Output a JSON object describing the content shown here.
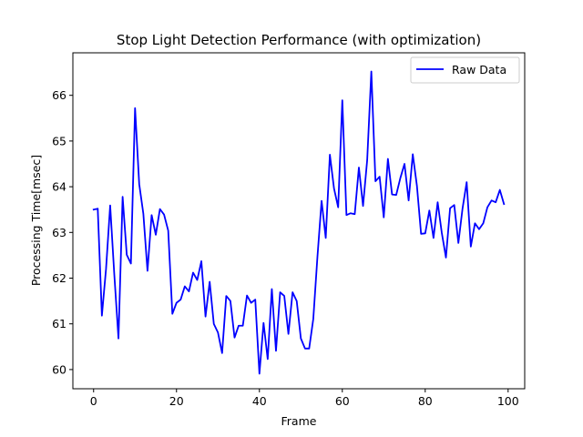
{
  "chart_data": {
    "type": "line",
    "title": "Stop Light Detection Performance (with optimization)",
    "xlabel": "Frame",
    "ylabel": "Processing Time[msec]",
    "xlim": [
      -5,
      104
    ],
    "ylim": [
      59.58,
      66.93
    ],
    "xticks": [
      0,
      20,
      40,
      60,
      80,
      100
    ],
    "yticks": [
      60,
      61,
      62,
      63,
      64,
      65,
      66
    ],
    "grid": false,
    "legend": "top-right",
    "series": [
      {
        "name": "Raw Data",
        "color": "#0000ff",
        "x": [
          0,
          1,
          2,
          3,
          4,
          5,
          6,
          7,
          8,
          9,
          10,
          11,
          12,
          13,
          14,
          15,
          16,
          17,
          18,
          19,
          20,
          21,
          22,
          23,
          24,
          25,
          26,
          27,
          28,
          29,
          30,
          31,
          32,
          33,
          34,
          35,
          36,
          37,
          38,
          39,
          40,
          41,
          42,
          43,
          44,
          45,
          46,
          47,
          48,
          49,
          50,
          51,
          52,
          53,
          54,
          55,
          56,
          57,
          58,
          59,
          60,
          61,
          62,
          63,
          64,
          65,
          66,
          67,
          68,
          69,
          70,
          71,
          72,
          73,
          74,
          75,
          76,
          77,
          78,
          79,
          80,
          81,
          82,
          83,
          84,
          85,
          86,
          87,
          88,
          89,
          90,
          91,
          92,
          93,
          94,
          95,
          96,
          97,
          98,
          99
        ],
        "values": [
          63.5,
          63.52,
          61.18,
          62.2,
          63.59,
          62.07,
          60.68,
          63.78,
          62.51,
          62.32,
          65.72,
          64.06,
          63.41,
          62.16,
          63.38,
          62.95,
          63.51,
          63.39,
          63.04,
          61.22,
          61.46,
          61.53,
          61.82,
          61.71,
          62.12,
          61.96,
          62.37,
          61.16,
          61.92,
          61.0,
          60.81,
          60.36,
          61.61,
          61.5,
          60.7,
          60.96,
          60.96,
          61.62,
          61.46,
          61.53,
          59.91,
          61.02,
          60.23,
          61.76,
          60.41,
          61.69,
          61.61,
          60.78,
          61.69,
          61.5,
          60.68,
          60.46,
          60.46,
          61.11,
          62.47,
          63.69,
          62.88,
          64.7,
          63.96,
          63.55,
          65.89,
          63.38,
          63.42,
          63.4,
          64.42,
          63.58,
          64.58,
          66.52,
          64.12,
          64.22,
          63.33,
          64.61,
          63.83,
          63.82,
          64.19,
          64.5,
          63.7,
          64.71,
          64.02,
          62.97,
          62.98,
          63.48,
          62.88,
          63.66,
          62.99,
          62.45,
          63.53,
          63.6,
          62.77,
          63.52,
          64.1,
          62.69,
          63.2,
          63.07,
          63.2,
          63.55,
          63.7,
          63.66,
          63.93,
          63.62
        ]
      }
    ]
  }
}
